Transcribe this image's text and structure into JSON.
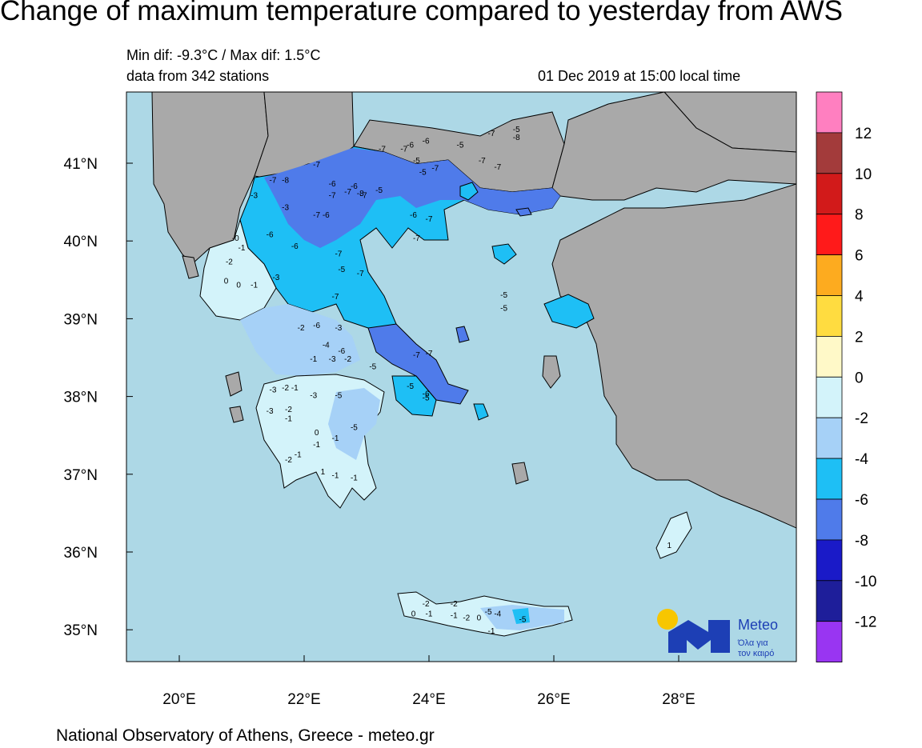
{
  "title": "Change of maximum temperature compared to yesterday from AWS",
  "stats_line": "Min dif: -9.3°C / Max dif: 1.5°C",
  "stations_line": "data from 342 stations",
  "datetime_line": "01 Dec 2019 at 15:00 local time",
  "footer": "National Observatory of Athens, Greece - meteo.gr",
  "logo": {
    "brand": "Meteo",
    "tagline_1": "Όλα για",
    "tagline_2": "τον καιρό",
    "sun_color": "#f7c600",
    "mark_color": "#1d3fb5"
  },
  "map": {
    "lat_labels": [
      "41°N",
      "40°N",
      "39°N",
      "38°N",
      "37°N",
      "36°N",
      "35°N"
    ],
    "lon_labels": [
      "20°E",
      "22°E",
      "24°E",
      "26°E",
      "28°E"
    ],
    "sea_color": "#add8e6",
    "land_color": "#a9a9a9"
  },
  "colorbar": {
    "labels": [
      "12",
      "10",
      "8",
      "6",
      "4",
      "2",
      "0",
      "-2",
      "-4",
      "-6",
      "-8",
      "-10",
      "-12"
    ],
    "colors": [
      "#ff7fc0",
      "#a33b3b",
      "#d21a1a",
      "#ff1a1a",
      "#fdab1f",
      "#ffdc40",
      "#fff9c8",
      "#d3f3fa",
      "#a6d1f7",
      "#1ebff5",
      "#4f7bea",
      "#1a1ac8",
      "#1e1e9a",
      "#9935f2"
    ]
  },
  "station_values": [
    {
      "v": "-7",
      "lon": 25.0,
      "lat": 41.35
    },
    {
      "v": "-5",
      "lon": 25.4,
      "lat": 41.4
    },
    {
      "v": "-8",
      "lon": 25.4,
      "lat": 41.3
    },
    {
      "v": "-6",
      "lon": 23.95,
      "lat": 41.25
    },
    {
      "v": "-5",
      "lon": 24.5,
      "lat": 41.2
    },
    {
      "v": "-7",
      "lon": 23.6,
      "lat": 41.15
    },
    {
      "v": "-6",
      "lon": 23.7,
      "lat": 41.2
    },
    {
      "v": "-5",
      "lon": 23.8,
      "lat": 41.0
    },
    {
      "v": "-5",
      "lon": 23.9,
      "lat": 40.85
    },
    {
      "v": "-7",
      "lon": 24.85,
      "lat": 41.0
    },
    {
      "v": "-7",
      "lon": 25.1,
      "lat": 40.92
    },
    {
      "v": "-7",
      "lon": 24.1,
      "lat": 40.9
    },
    {
      "v": "-7",
      "lon": 23.25,
      "lat": 41.15
    },
    {
      "v": "-7",
      "lon": 22.2,
      "lat": 40.95
    },
    {
      "v": "-8",
      "lon": 21.7,
      "lat": 40.75
    },
    {
      "v": "-7",
      "lon": 21.5,
      "lat": 40.75
    },
    {
      "v": "-6",
      "lon": 22.45,
      "lat": 40.7
    },
    {
      "v": "-7",
      "lon": 22.45,
      "lat": 40.55
    },
    {
      "v": "-6",
      "lon": 22.8,
      "lat": 40.67
    },
    {
      "v": "-7",
      "lon": 22.7,
      "lat": 40.6
    },
    {
      "v": "-7",
      "lon": 22.95,
      "lat": 40.55
    },
    {
      "v": "-8",
      "lon": 22.9,
      "lat": 40.58
    },
    {
      "v": "-5",
      "lon": 23.2,
      "lat": 40.62
    },
    {
      "v": "-3",
      "lon": 21.2,
      "lat": 40.55
    },
    {
      "v": "-3",
      "lon": 21.7,
      "lat": 40.4
    },
    {
      "v": "-7",
      "lon": 22.2,
      "lat": 40.3
    },
    {
      "v": "-6",
      "lon": 22.35,
      "lat": 40.3
    },
    {
      "v": "-6",
      "lon": 23.75,
      "lat": 40.3
    },
    {
      "v": "-7",
      "lon": 24.0,
      "lat": 40.25
    },
    {
      "v": "-7",
      "lon": 23.8,
      "lat": 40.0
    },
    {
      "v": "-6",
      "lon": 21.45,
      "lat": 40.05
    },
    {
      "v": "-6",
      "lon": 21.85,
      "lat": 39.9
    },
    {
      "v": "-7",
      "lon": 22.55,
      "lat": 39.8
    },
    {
      "v": "-5",
      "lon": 22.6,
      "lat": 39.6
    },
    {
      "v": "-7",
      "lon": 22.9,
      "lat": 39.55
    },
    {
      "v": "-3",
      "lon": 21.55,
      "lat": 39.5
    },
    {
      "v": "-7",
      "lon": 22.5,
      "lat": 39.25
    },
    {
      "v": "-5",
      "lon": 25.2,
      "lat": 39.27
    },
    {
      "v": "-5",
      "lon": 25.2,
      "lat": 39.1
    },
    {
      "v": "-0",
      "lon": 20.9,
      "lat": 40.0
    },
    {
      "v": "-1",
      "lon": 21.0,
      "lat": 39.88
    },
    {
      "v": "-2",
      "lon": 20.8,
      "lat": 39.7
    },
    {
      "v": "0",
      "lon": 20.75,
      "lat": 39.45
    },
    {
      "v": "0",
      "lon": 20.95,
      "lat": 39.4
    },
    {
      "v": "-1",
      "lon": 21.2,
      "lat": 39.4
    },
    {
      "v": "-2",
      "lon": 21.95,
      "lat": 38.85
    },
    {
      "v": "-6",
      "lon": 22.2,
      "lat": 38.88
    },
    {
      "v": "-3",
      "lon": 22.55,
      "lat": 38.85
    },
    {
      "v": "-4",
      "lon": 22.35,
      "lat": 38.63
    },
    {
      "v": "-6",
      "lon": 22.6,
      "lat": 38.55
    },
    {
      "v": "-3",
      "lon": 22.45,
      "lat": 38.45
    },
    {
      "v": "-2",
      "lon": 22.7,
      "lat": 38.45
    },
    {
      "v": "-5",
      "lon": 23.1,
      "lat": 38.35
    },
    {
      "v": "-1",
      "lon": 22.15,
      "lat": 38.45
    },
    {
      "v": "-7",
      "lon": 23.8,
      "lat": 38.5
    },
    {
      "v": "-7",
      "lon": 24.0,
      "lat": 38.52
    },
    {
      "v": "-6",
      "lon": 23.95,
      "lat": 38.0
    },
    {
      "v": "-5",
      "lon": 23.95,
      "lat": 37.95
    },
    {
      "v": "-5",
      "lon": 23.7,
      "lat": 38.1
    },
    {
      "v": "-3",
      "lon": 21.5,
      "lat": 38.05
    },
    {
      "v": "-2",
      "lon": 21.7,
      "lat": 38.08
    },
    {
      "v": "-1",
      "lon": 21.85,
      "lat": 38.08
    },
    {
      "v": "-3",
      "lon": 22.15,
      "lat": 37.98
    },
    {
      "v": "-5",
      "lon": 22.55,
      "lat": 37.98
    },
    {
      "v": "-3",
      "lon": 21.45,
      "lat": 37.78
    },
    {
      "v": "-2",
      "lon": 21.75,
      "lat": 37.8
    },
    {
      "v": "-1",
      "lon": 21.75,
      "lat": 37.68
    },
    {
      "v": "-5",
      "lon": 22.8,
      "lat": 37.57
    },
    {
      "v": "0",
      "lon": 22.2,
      "lat": 37.5
    },
    {
      "v": "-1",
      "lon": 22.5,
      "lat": 37.43
    },
    {
      "v": "-1",
      "lon": 22.2,
      "lat": 37.35
    },
    {
      "v": "-2",
      "lon": 21.75,
      "lat": 37.15
    },
    {
      "v": "-1",
      "lon": 21.9,
      "lat": 37.22
    },
    {
      "v": "1",
      "lon": 22.3,
      "lat": 37.0
    },
    {
      "v": "-1",
      "lon": 22.5,
      "lat": 36.95
    },
    {
      "v": "-1",
      "lon": 22.8,
      "lat": 36.92
    },
    {
      "v": "-2",
      "lon": 23.95,
      "lat": 35.3
    },
    {
      "v": "0",
      "lon": 23.75,
      "lat": 35.17
    },
    {
      "v": "-1",
      "lon": 24.0,
      "lat": 35.17
    },
    {
      "v": "-2",
      "lon": 24.4,
      "lat": 35.3
    },
    {
      "v": "-1",
      "lon": 24.4,
      "lat": 35.15
    },
    {
      "v": "-2",
      "lon": 24.6,
      "lat": 35.12
    },
    {
      "v": "0",
      "lon": 24.8,
      "lat": 35.12
    },
    {
      "v": "-5",
      "lon": 24.95,
      "lat": 35.2
    },
    {
      "v": "-4",
      "lon": 25.1,
      "lat": 35.17
    },
    {
      "v": "-5",
      "lon": 25.5,
      "lat": 35.1
    },
    {
      "v": "-1",
      "lon": 25.0,
      "lat": 34.95
    },
    {
      "v": "1",
      "lon": 27.85,
      "lat": 36.05
    }
  ]
}
